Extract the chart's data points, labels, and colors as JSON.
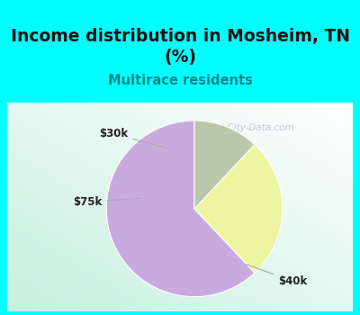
{
  "title": "Income distribution in Mosheim, TN\n(%)",
  "subtitle": "Multirace residents",
  "slices": [
    {
      "label": "$40k",
      "value": 62,
      "color": "#c8aadf"
    },
    {
      "label": "$30k",
      "value": 26,
      "color": "#eef5a0"
    },
    {
      "label": "$75k",
      "value": 12,
      "color": "#b8c8a8"
    }
  ],
  "startangle": 90,
  "bg_cyan": "#00ffff",
  "chart_bg": "#ffffff",
  "title_color": "#111111",
  "subtitle_color": "#008888",
  "watermark": "City-Data.com",
  "label_color": "#222222",
  "arrow_color": "#aaaaaa",
  "title_fontsize": 13.5,
  "subtitle_fontsize": 10.5
}
